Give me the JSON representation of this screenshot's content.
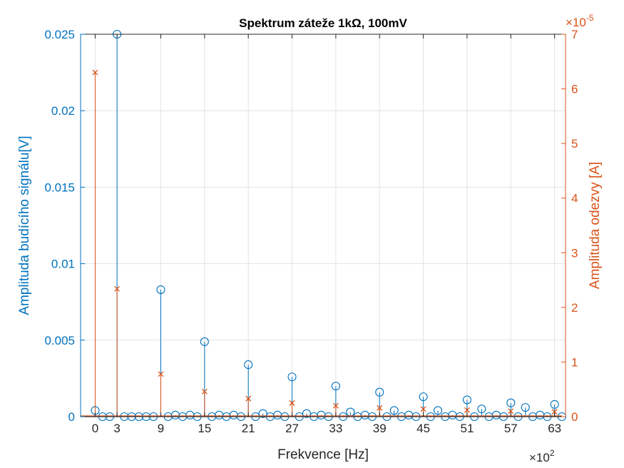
{
  "chart_data": {
    "type": "stem",
    "title": "Spektrum záteže 1kΩ, 100mV",
    "xlabel": "Frekvence [Hz]",
    "x_exponent_label": "×10",
    "x_exponent": "2",
    "xlim": [
      -2,
      64.5
    ],
    "xticks": [
      0,
      3,
      9,
      15,
      21,
      27,
      33,
      39,
      45,
      51,
      57,
      63
    ],
    "grid": true,
    "left_axis": {
      "label": "Amplituda budícího signálu[V]",
      "color": "#0072BD",
      "ylim": [
        0,
        0.025
      ],
      "ticks": [
        0,
        0.005,
        0.01,
        0.015,
        0.02,
        0.025
      ],
      "tick_labels": [
        "0",
        "0.005",
        "0.01",
        "0.015",
        "0.02",
        "0.025"
      ],
      "series": {
        "marker": "circle",
        "x": [
          0,
          1,
          2,
          3,
          4,
          5,
          6,
          7,
          8,
          9,
          10,
          11,
          12,
          13,
          14,
          15,
          16,
          17,
          18,
          19,
          20,
          21,
          22,
          23,
          24,
          25,
          26,
          27,
          28,
          29,
          30,
          31,
          32,
          33,
          34,
          35,
          36,
          37,
          38,
          39,
          40,
          41,
          42,
          43,
          44,
          45,
          46,
          47,
          48,
          49,
          50,
          51,
          52,
          53,
          54,
          55,
          56,
          57,
          58,
          59,
          60,
          61,
          62,
          63,
          64
        ],
        "values": [
          0.0004,
          0,
          0,
          0.025,
          0,
          0,
          0,
          0,
          0,
          0.0083,
          0,
          0.0001,
          0,
          0.0001,
          0,
          0.0049,
          0,
          0.0001,
          0,
          0.0001,
          0,
          0.0034,
          0,
          0.0002,
          0,
          0.0001,
          0,
          0.0026,
          0,
          0.0002,
          0,
          0.0001,
          0,
          0.002,
          0,
          0.0003,
          0,
          0.0001,
          0,
          0.0016,
          0,
          0.0004,
          0,
          0.0001,
          0,
          0.0013,
          0,
          0.0004,
          0,
          0.0001,
          0,
          0.0011,
          0,
          0.0005,
          0,
          0.0001,
          0,
          0.0009,
          0,
          0.0006,
          0,
          0.0001,
          0,
          0.0008,
          0
        ]
      }
    },
    "right_axis": {
      "label": "Amplituda odezvy [A]",
      "color": "#D95319",
      "exponent_label": "×10",
      "exponent": "-5",
      "ylim": [
        0,
        7
      ],
      "ticks": [
        0,
        1,
        2,
        3,
        4,
        5,
        6,
        7
      ],
      "tick_labels": [
        "0",
        "1",
        "2",
        "3",
        "4",
        "5",
        "6",
        "7"
      ],
      "series": {
        "marker": "x",
        "x": [
          0,
          3,
          9,
          15,
          21,
          27,
          33,
          39,
          45,
          51,
          57,
          63
        ],
        "values": [
          6.3,
          2.34,
          0.78,
          0.46,
          0.33,
          0.25,
          0.2,
          0.16,
          0.14,
          0.12,
          0.1,
          0.09
        ]
      }
    }
  }
}
